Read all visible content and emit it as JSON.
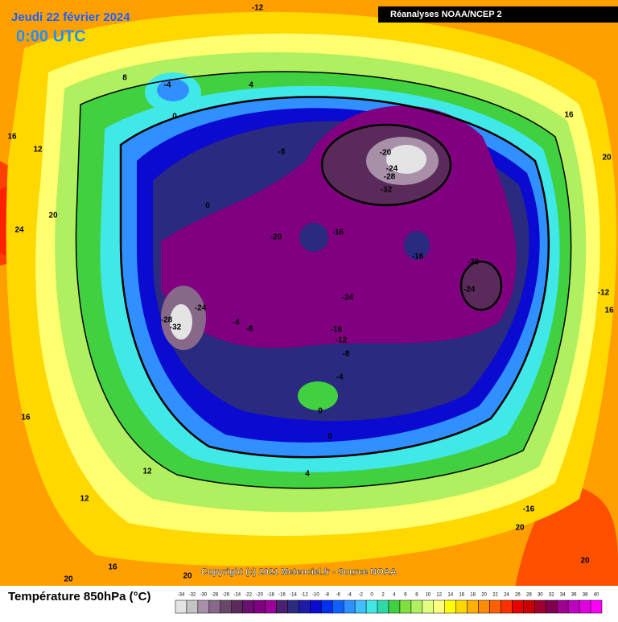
{
  "header": {
    "date": "Jeudi 22 février 2024",
    "time": "0:00 UTC",
    "source_box": "Réanalyses NOAA/NCEP 2"
  },
  "copyright": "Copyright (c) 2021 Meteociel.fr - Source NOAA",
  "legend": {
    "title": "Température 850hPa (°C)",
    "ticks": [
      -34,
      -32,
      -30,
      -28,
      -26,
      -24,
      -22,
      -20,
      -18,
      -16,
      -14,
      -12,
      -10,
      -8,
      -6,
      -4,
      -2,
      0,
      2,
      4,
      6,
      8,
      10,
      12,
      14,
      16,
      18,
      20,
      22,
      24,
      26,
      28,
      30,
      32,
      34,
      36,
      38,
      40
    ],
    "colors": [
      "#e4e4e4",
      "#c4c4c4",
      "#a890a8",
      "#886888",
      "#684868",
      "#5a2a5a",
      "#6a1070",
      "#800080",
      "#9a009a",
      "#4a2070",
      "#2a2a80",
      "#1c1ca8",
      "#0a0ad0",
      "#0030f0",
      "#1060ff",
      "#3090ff",
      "#40c0ff",
      "#40e8e8",
      "#30d8a8",
      "#40d040",
      "#80e040",
      "#b0f060",
      "#e0ff80",
      "#ffff80",
      "#ffff00",
      "#ffd800",
      "#ffb000",
      "#ff8c00",
      "#ff6000",
      "#ff3000",
      "#e80000",
      "#c80000",
      "#a00030",
      "#800050",
      "#a00090",
      "#c000c0",
      "#e000e0",
      "#ff00ff"
    ]
  },
  "contour_labels": [
    "-12",
    "8",
    "-4",
    "4",
    "0",
    "16",
    "12",
    "-8",
    "0",
    "20",
    "24",
    "-20",
    "-16",
    "-20",
    "-24",
    "-28",
    "-32",
    "-16",
    "-20",
    "-24",
    "16",
    "20",
    "-12",
    "16",
    "-24",
    "-24",
    "-28",
    "-32",
    "-4",
    "-8",
    "-16",
    "-12",
    "-8",
    "-4",
    "0",
    "0",
    "16",
    "12",
    "4",
    "12",
    "-16",
    "20",
    "16",
    "20",
    "20",
    "20"
  ]
}
